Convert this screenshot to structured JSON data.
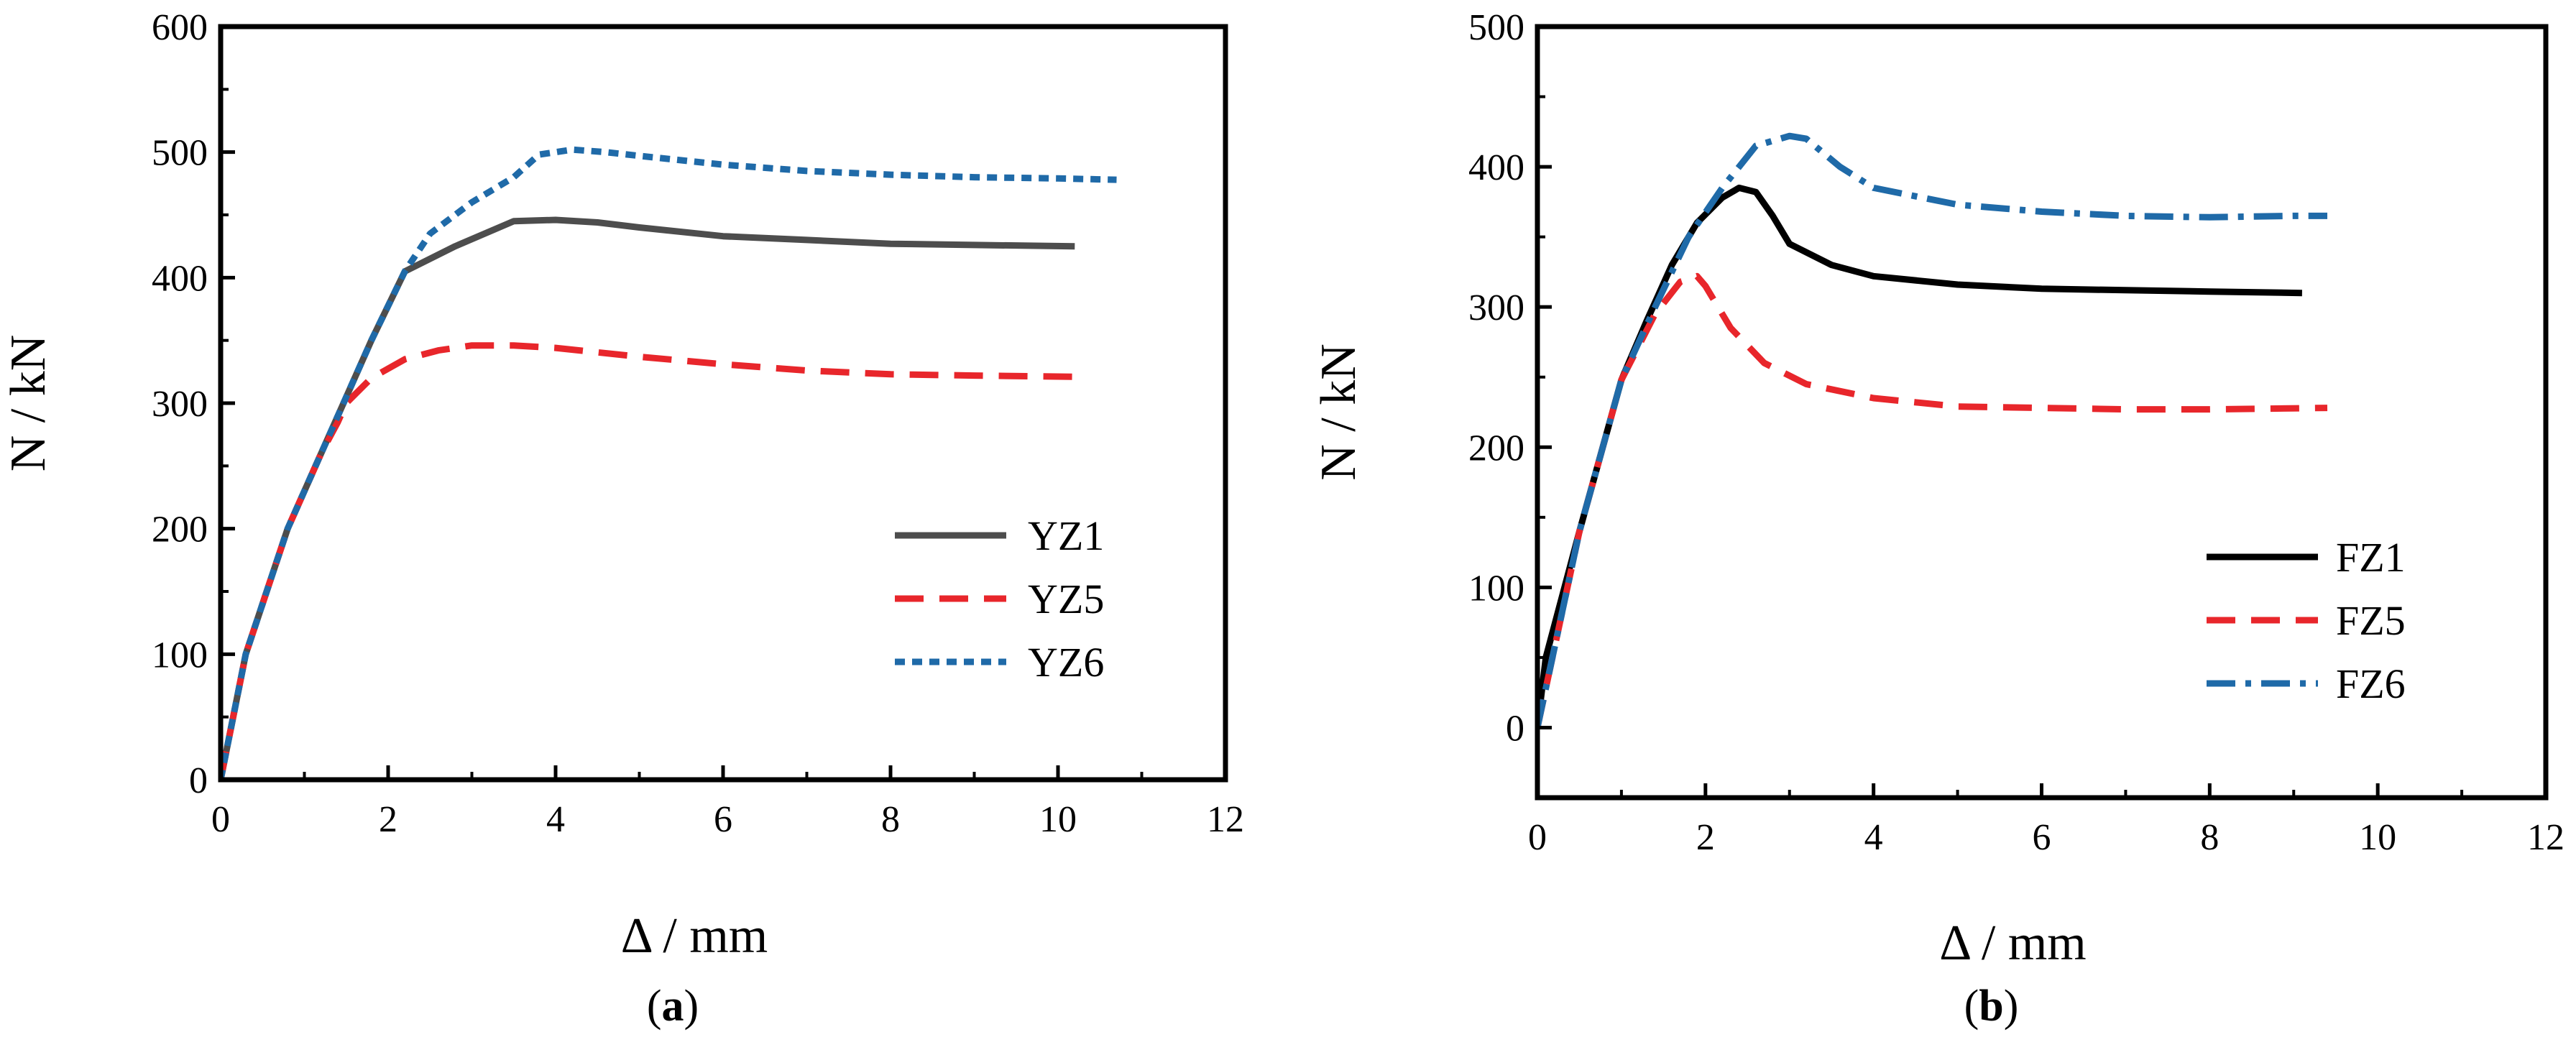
{
  "chart_data": [
    {
      "type": "line",
      "caption": "(a)",
      "caption_letter": "a",
      "xlabel": "Δ / mm",
      "ylabel": "N / kN",
      "xlim": [
        0,
        12
      ],
      "ylim": [
        0,
        600
      ],
      "xticks": [
        0,
        2,
        4,
        6,
        8,
        10,
        12
      ],
      "yticks": [
        0,
        100,
        200,
        300,
        400,
        500,
        600
      ],
      "grid": false,
      "legend_position": "right-middle",
      "series": [
        {
          "name": "YZ1",
          "color": "#4d4d4d",
          "dash": "solid",
          "x": [
            0,
            0.3,
            0.8,
            1.2,
            1.5,
            1.8,
            2.2,
            2.8,
            3.5,
            4.0,
            4.5,
            5.0,
            6.0,
            7.0,
            8.0,
            9.0,
            10.2
          ],
          "y": [
            0,
            100,
            200,
            260,
            305,
            350,
            405,
            425,
            445,
            446,
            444,
            440,
            433,
            430,
            427,
            426,
            425
          ]
        },
        {
          "name": "YZ5",
          "color": "#e8262b",
          "dash": "dashed",
          "x": [
            0,
            0.3,
            0.8,
            1.2,
            1.4,
            1.5,
            1.8,
            2.2,
            2.6,
            3.0,
            3.5,
            4.0,
            5.0,
            6.0,
            7.0,
            8.0,
            9.0,
            10.2
          ],
          "y": [
            0,
            100,
            200,
            260,
            285,
            300,
            320,
            335,
            342,
            346,
            346,
            344,
            337,
            331,
            326,
            323,
            322,
            321
          ]
        },
        {
          "name": "YZ6",
          "color": "#1f6aa8",
          "dash": "dotted",
          "x": [
            0,
            0.3,
            0.8,
            1.2,
            1.5,
            1.8,
            2.2,
            2.5,
            3.0,
            3.5,
            3.8,
            4.2,
            4.6,
            5.0,
            6.0,
            7.0,
            8.0,
            9.0,
            10.0,
            10.7
          ],
          "y": [
            0,
            100,
            200,
            260,
            305,
            350,
            405,
            435,
            460,
            480,
            498,
            502,
            500,
            497,
            490,
            485,
            482,
            480,
            479,
            478
          ]
        }
      ]
    },
    {
      "type": "line",
      "caption": "(b)",
      "caption_letter": "b",
      "xlabel": "Δ / mm",
      "ylabel": "N / kN",
      "xlim": [
        0,
        12
      ],
      "ylim": [
        -50,
        500
      ],
      "xticks": [
        0,
        2,
        4,
        6,
        8,
        10,
        12
      ],
      "yticks": [
        0,
        100,
        200,
        300,
        400,
        500
      ],
      "grid": false,
      "legend_position": "right-bottom",
      "series": [
        {
          "name": "FZ1",
          "color": "#000000",
          "dash": "solid",
          "x": [
            0,
            0.1,
            0.5,
            1.0,
            1.3,
            1.6,
            1.9,
            2.2,
            2.4,
            2.6,
            2.8,
            3.0,
            3.5,
            4.0,
            5.0,
            6.0,
            7.0,
            8.0,
            9.1
          ],
          "y": [
            0,
            50,
            140,
            248,
            290,
            330,
            360,
            378,
            385,
            382,
            365,
            345,
            330,
            322,
            316,
            313,
            312,
            311,
            310
          ]
        },
        {
          "name": "FZ5",
          "color": "#e8262b",
          "dash": "dashed",
          "x": [
            0,
            0.5,
            1.0,
            1.4,
            1.7,
            1.9,
            2.0,
            2.3,
            2.7,
            3.2,
            4.0,
            5.0,
            6.0,
            7.0,
            8.0,
            9.4
          ],
          "y": [
            0,
            140,
            248,
            295,
            318,
            322,
            315,
            285,
            260,
            245,
            235,
            229,
            228,
            227,
            227,
            228
          ]
        },
        {
          "name": "FZ6",
          "color": "#1f6aa8",
          "dash": "dashdot",
          "x": [
            0,
            0.5,
            1.0,
            1.4,
            1.8,
            2.2,
            2.6,
            3.0,
            3.2,
            3.6,
            4.0,
            5.0,
            6.0,
            7.0,
            8.0,
            9.0,
            9.4
          ],
          "y": [
            0,
            140,
            248,
            300,
            350,
            385,
            415,
            422,
            420,
            400,
            385,
            373,
            368,
            365,
            364,
            365,
            365
          ]
        }
      ]
    }
  ]
}
